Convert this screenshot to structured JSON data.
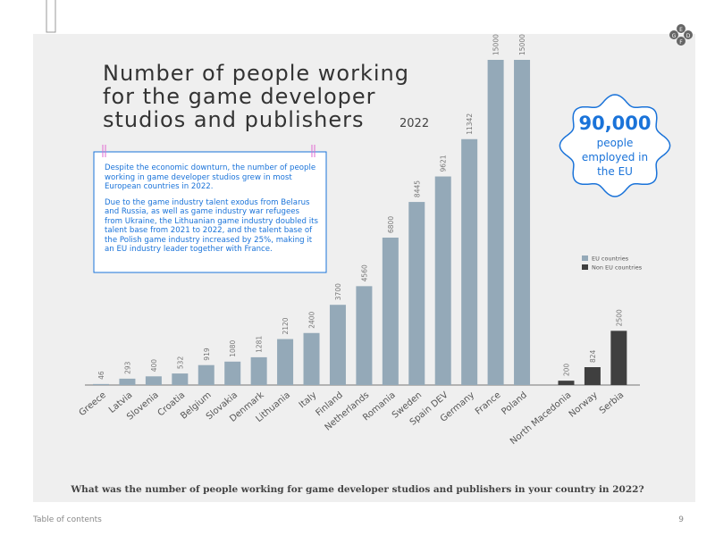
{
  "logo_letters": [
    "E",
    "G",
    "D",
    "F"
  ],
  "chart_data": {
    "type": "bar",
    "title": [
      "Number of people working",
      "for the game developer",
      "studios and publishers"
    ],
    "subtitle": "2022",
    "categories": [
      "Greece",
      "Latvia",
      "Slovenia",
      "Croatia",
      "Belgium",
      "Slovakia",
      "Denmark",
      "Lithuania",
      "Italy",
      "Finland",
      "Netherlands",
      "Romania",
      "Sweden",
      "Spain DEV",
      "Germany",
      "France",
      "Poland",
      "North Macedonia",
      "Norway",
      "Serbia"
    ],
    "series": [
      {
        "name": "EU countries",
        "color": "#94a9b8",
        "values": [
          46,
          293,
          400,
          532,
          919,
          1080,
          1281,
          2120,
          2400,
          3700,
          4560,
          6800,
          8445,
          9621,
          11342,
          15000,
          15000,
          null,
          null,
          null
        ]
      },
      {
        "name": "Non EU countries",
        "color": "#3f3f3f",
        "values": [
          null,
          null,
          null,
          null,
          null,
          null,
          null,
          null,
          null,
          null,
          null,
          null,
          null,
          null,
          null,
          null,
          null,
          200,
          824,
          2500
        ]
      }
    ],
    "ylim": [
      0,
      15000
    ],
    "legend": "right",
    "annotations": {
      "paragraphs": [
        "Despite the economic downturn, the number of people working in game developer studios grew in most European countries in 2022.",
        "Due to the game industry talent exodus from Belarus and Russia, as well as game industry war refugees from Ukraine, the Lithuanian game industry doubled its talent base from 2021 to 2022, and the talent base of the Polish game industry increased by 25%, making it an EU industry leader together with France."
      ],
      "badge_value": "90,000",
      "badge_text": "people employed in the EU",
      "question": "What was the number of people working for game developer studios and publishers in your country in 2022?"
    }
  },
  "footer": {
    "link": "Table of contents",
    "page": "9"
  }
}
